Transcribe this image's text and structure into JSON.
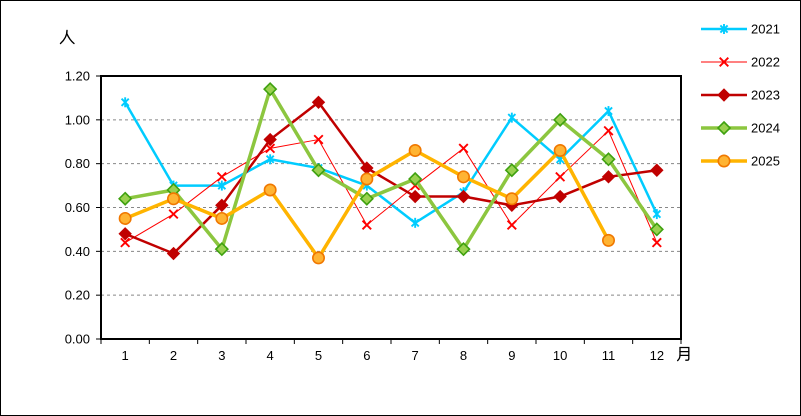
{
  "window": {
    "background": "#ffffff",
    "border_color": "#000000"
  },
  "chart_data": {
    "type": "line",
    "title": "",
    "y_unit_label": "人",
    "x_unit_label": "月",
    "x_tick_labels": [
      "1",
      "2",
      "3",
      "4",
      "5",
      "6",
      "7",
      "8",
      "9",
      "10",
      "11",
      "12"
    ],
    "y_tick_labels": [
      "0.00",
      "0.20",
      "0.40",
      "0.60",
      "0.80",
      "1.00",
      "1.20"
    ],
    "ylim": [
      0,
      1.2
    ],
    "ytick_step": 0.2,
    "grid": "horizontal-dashed",
    "grid_color": "#888888",
    "axis_color": "#000000",
    "legend_position": "top-right-outside",
    "series": [
      {
        "name": "2021",
        "color": "#00CCFF",
        "marker": "asterisk",
        "line_width": 2.5,
        "values": [
          1.08,
          0.7,
          0.7,
          0.82,
          0.78,
          0.7,
          0.53,
          0.67,
          1.01,
          0.82,
          1.04,
          0.57
        ]
      },
      {
        "name": "2022",
        "color": "#FF0000",
        "marker": "x",
        "line_width": 1,
        "values": [
          0.44,
          0.57,
          0.74,
          0.87,
          0.91,
          0.52,
          0.7,
          0.87,
          0.52,
          0.74,
          0.95,
          0.44
        ]
      },
      {
        "name": "2023",
        "color": "#C00000",
        "marker": "diamond",
        "marker_fill": "#C00000",
        "marker_stroke": "#C00000",
        "line_width": 2.5,
        "values": [
          0.48,
          0.39,
          0.61,
          0.91,
          1.08,
          0.78,
          0.65,
          0.65,
          0.61,
          0.65,
          0.74,
          0.77
        ]
      },
      {
        "name": "2024",
        "color": "#8CC63F",
        "marker": "diamond-outline",
        "marker_fill": "#9AD14F",
        "marker_stroke": "#3FA110",
        "line_width": 3.5,
        "values": [
          0.64,
          0.68,
          0.41,
          1.14,
          0.77,
          0.64,
          0.73,
          0.41,
          0.77,
          1.0,
          0.82,
          0.5
        ]
      },
      {
        "name": "2025",
        "color": "#FFB400",
        "marker": "circle",
        "marker_fill": "#FFB433",
        "marker_stroke": "#F07800",
        "line_width": 3.5,
        "values": [
          0.55,
          0.64,
          0.55,
          0.68,
          0.37,
          0.73,
          0.86,
          0.74,
          0.64,
          0.86,
          0.45,
          null
        ]
      }
    ]
  }
}
